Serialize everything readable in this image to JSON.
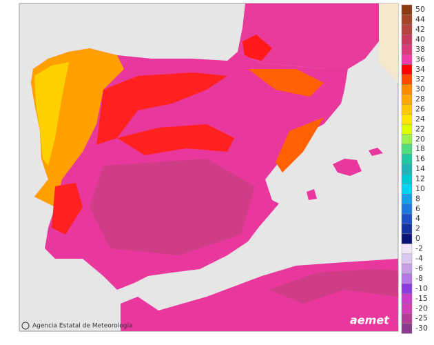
{
  "map": {
    "credit": "Agencia Estatal de Meteorología",
    "logo": "aemet",
    "legend": [
      {
        "label": 50,
        "color": "#8b3c14"
      },
      {
        "label": 44,
        "color": "#a3442b"
      },
      {
        "label": 42,
        "color": "#b6453f"
      },
      {
        "label": 40,
        "color": "#c63a5e"
      },
      {
        "label": 38,
        "color": "#d83a7c"
      },
      {
        "label": 36,
        "color": "#f03ca8"
      },
      {
        "label": 34,
        "color": "#ff0000"
      },
      {
        "label": 32,
        "color": "#ff4a00"
      },
      {
        "label": 30,
        "color": "#ff8c00"
      },
      {
        "label": 28,
        "color": "#ffa800"
      },
      {
        "label": 26,
        "color": "#ffc800"
      },
      {
        "label": 24,
        "color": "#ffe600"
      },
      {
        "label": 22,
        "color": "#dcff00"
      },
      {
        "label": 20,
        "color": "#9cf050"
      },
      {
        "label": 18,
        "color": "#50dc80"
      },
      {
        "label": 16,
        "color": "#20c8a0"
      },
      {
        "label": 14,
        "color": "#20b4b4"
      },
      {
        "label": 12,
        "color": "#00c8d2"
      },
      {
        "label": 10,
        "color": "#00d2f0"
      },
      {
        "label": 8,
        "color": "#14a0e6"
      },
      {
        "label": 6,
        "color": "#1e78dc"
      },
      {
        "label": 4,
        "color": "#1e50c8"
      },
      {
        "label": 2,
        "color": "#1432a0"
      },
      {
        "label": 0,
        "color": "#0a1478"
      },
      {
        "label": -2,
        "color": "#f0e6f8"
      },
      {
        "label": -4,
        "color": "#dcc8f0"
      },
      {
        "label": -6,
        "color": "#c8a0e6"
      },
      {
        "label": -8,
        "color": "#b478e6"
      },
      {
        "label": -10,
        "color": "#8c3cdc"
      },
      {
        "label": -15,
        "color": "#c83cc8"
      },
      {
        "label": -20,
        "color": "#d23cb4"
      },
      {
        "label": -25,
        "color": "#b43c96"
      },
      {
        "label": -30,
        "color": "#8c3c8c"
      }
    ]
  }
}
